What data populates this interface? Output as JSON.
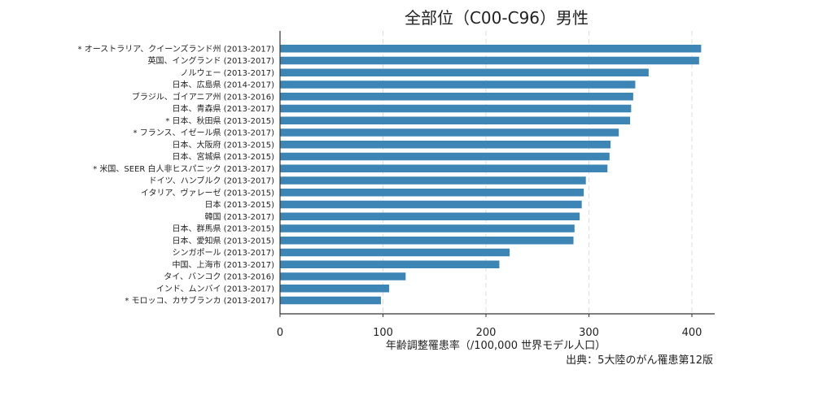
{
  "chart_data": {
    "type": "bar",
    "orientation": "horizontal",
    "title": "全部位（C00-C96）男性",
    "xlabel": "年齢調整罹患率（/100,000 世界モデル人口）",
    "ylabel": "",
    "source": "出典：5大陸のがん罹患第12版",
    "xlim": [
      0,
      420
    ],
    "xticks": [
      "0",
      "100",
      "200",
      "300",
      "400"
    ],
    "grid": "vertical dashed",
    "bar_color": "#3d85b5",
    "categories": [
      "* オーストラリア、クイーンズランド州 (2013-2017)",
      "英国、イングランド (2013-2017)",
      "ノルウェー (2013-2017)",
      "日本、広島県 (2014-2017)",
      "ブラジル、ゴイアニア州 (2013-2016)",
      "日本、青森県 (2013-2017)",
      "* 日本、秋田県 (2013-2015)",
      "* フランス、イゼール県 (2013-2017)",
      "日本、大阪府 (2013-2015)",
      "日本、宮城県 (2013-2015)",
      "* 米国、SEER 白人非ヒスパニック (2013-2017)",
      "ドイツ、ハンブルク (2013-2017)",
      "イタリア、ヴァレーゼ (2013-2015)",
      "日本 (2013-2015)",
      "韓国 (2013-2017)",
      "日本、群馬県 (2013-2015)",
      "日本、愛知県 (2013-2015)",
      "シンガポール (2013-2017)",
      "中国、上海市 (2013-2017)",
      "タイ、バンコク (2013-2016)",
      "インド、ムンバイ (2013-2017)",
      "* モロッコ、カサブランカ (2013-2017)"
    ],
    "values": [
      409,
      407,
      358,
      345,
      343,
      341,
      340,
      329,
      321,
      320,
      318,
      297,
      295,
      293,
      291,
      286,
      285,
      223,
      213,
      122,
      106,
      98
    ]
  }
}
